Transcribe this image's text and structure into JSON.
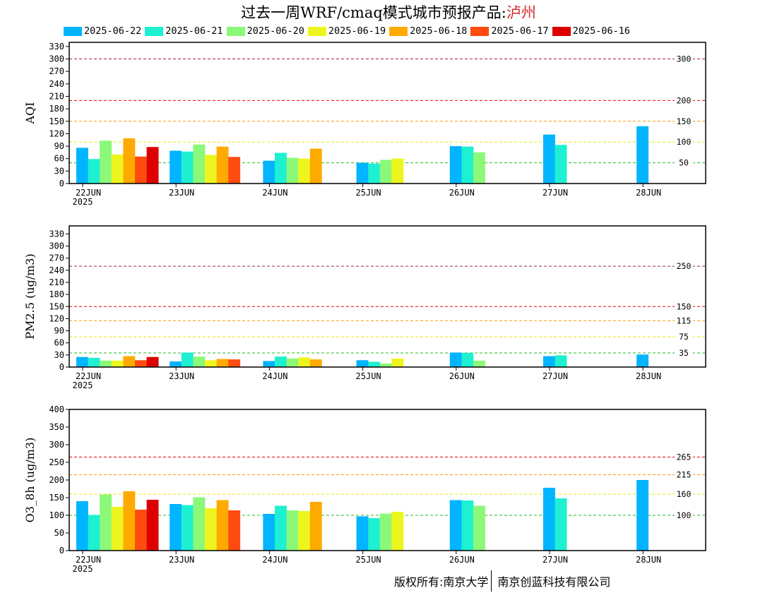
{
  "title": {
    "prefix": "过去一周WRF/cmaq模式城市预报产品:",
    "city": "泸州"
  },
  "footer": {
    "left": "版权所有:南京大学",
    "right": "南京创蓝科技有限公司"
  },
  "colors": {
    "2025-06-22": "#00b4ff",
    "2025-06-21": "#1ef0d2",
    "2025-06-20": "#8cf878",
    "2025-06-19": "#eef51e",
    "2025-06-18": "#ffaa00",
    "2025-06-17": "#ff4b0f",
    "2025-06-16": "#dc0000"
  },
  "chart_data": [
    {
      "type": "bar",
      "ylabel": "AQI",
      "ylim": [
        0,
        340
      ],
      "yticks": [
        0,
        30,
        60,
        90,
        120,
        150,
        180,
        210,
        240,
        270,
        300,
        330
      ],
      "xticks": [
        "22JUN",
        "23JUN",
        "24JUN",
        "25JUN",
        "26JUN",
        "27JUN",
        "28JUN"
      ],
      "year_label": "2025",
      "legend": [
        "2025-06-22",
        "2025-06-21",
        "2025-06-20",
        "2025-06-19",
        "2025-06-18",
        "2025-06-17",
        "2025-06-16"
      ],
      "series": [
        {
          "name": "2025-06-22",
          "values": [
            86,
            79,
            55,
            50,
            90,
            118,
            138
          ]
        },
        {
          "name": "2025-06-21",
          "values": [
            59,
            77,
            74,
            48,
            89,
            93,
            null
          ]
        },
        {
          "name": "2025-06-20",
          "values": [
            103,
            94,
            62,
            57,
            75,
            null,
            null
          ]
        },
        {
          "name": "2025-06-19",
          "values": [
            70,
            69,
            60,
            60,
            null,
            null,
            null
          ]
        },
        {
          "name": "2025-06-18",
          "values": [
            109,
            89,
            84,
            null,
            null,
            null,
            null
          ]
        },
        {
          "name": "2025-06-17",
          "values": [
            65,
            64,
            null,
            null,
            null,
            null,
            null
          ]
        },
        {
          "name": "2025-06-16",
          "values": [
            88,
            null,
            null,
            null,
            null,
            null,
            null
          ]
        }
      ],
      "thresholds": [
        {
          "value": 50,
          "label": "50",
          "color": "#22bb22"
        },
        {
          "value": 100,
          "label": "100",
          "color": "#e8e800"
        },
        {
          "value": 150,
          "label": "150",
          "color": "#ff9900"
        },
        {
          "value": 200,
          "label": "200",
          "color": "#ee0000"
        },
        {
          "value": 300,
          "label": "300",
          "color": "#a0205a"
        }
      ]
    },
    {
      "type": "bar",
      "ylabel": "PM2.5 (ug/m3)",
      "ylim": [
        0,
        350
      ],
      "yticks": [
        0,
        30,
        60,
        90,
        120,
        150,
        180,
        210,
        240,
        270,
        300,
        330
      ],
      "xticks": [
        "22JUN",
        "23JUN",
        "24JUN",
        "25JUN",
        "26JUN",
        "27JUN",
        "28JUN"
      ],
      "year_label": "2025",
      "series": [
        {
          "name": "2025-06-22",
          "values": [
            25,
            14,
            15,
            17,
            36,
            27,
            31
          ]
        },
        {
          "name": "2025-06-21",
          "values": [
            23,
            36,
            26,
            13,
            35,
            29,
            null
          ]
        },
        {
          "name": "2025-06-20",
          "values": [
            16,
            26,
            21,
            9,
            16,
            null,
            null
          ]
        },
        {
          "name": "2025-06-19",
          "values": [
            16,
            17,
            24,
            21,
            null,
            null,
            null
          ]
        },
        {
          "name": "2025-06-18",
          "values": [
            27,
            20,
            19,
            null,
            null,
            null,
            null
          ]
        },
        {
          "name": "2025-06-17",
          "values": [
            17,
            19,
            null,
            null,
            null,
            null,
            null
          ]
        },
        {
          "name": "2025-06-16",
          "values": [
            25,
            null,
            null,
            null,
            null,
            null,
            null
          ]
        }
      ],
      "thresholds": [
        {
          "value": 35,
          "label": "35",
          "color": "#22bb22"
        },
        {
          "value": 75,
          "label": "75",
          "color": "#e8e800"
        },
        {
          "value": 115,
          "label": "115",
          "color": "#ff9900"
        },
        {
          "value": 150,
          "label": "150",
          "color": "#ee0000"
        },
        {
          "value": 250,
          "label": "250",
          "color": "#a0205a"
        }
      ]
    },
    {
      "type": "bar",
      "ylabel": "O3_8h (ug/m3)",
      "ylim": [
        0,
        400
      ],
      "yticks": [
        0,
        50,
        100,
        150,
        200,
        250,
        300,
        350,
        400
      ],
      "xticks": [
        "22JUN",
        "23JUN",
        "24JUN",
        "25JUN",
        "26JUN",
        "27JUN",
        "28JUN"
      ],
      "year_label": "2025",
      "series": [
        {
          "name": "2025-06-22",
          "values": [
            140,
            132,
            104,
            97,
            143,
            178,
            200
          ]
        },
        {
          "name": "2025-06-21",
          "values": [
            101,
            129,
            127,
            92,
            142,
            148,
            null
          ]
        },
        {
          "name": "2025-06-20",
          "values": [
            159,
            151,
            114,
            105,
            127,
            null,
            null
          ]
        },
        {
          "name": "2025-06-19",
          "values": [
            124,
            120,
            112,
            110,
            null,
            null,
            null
          ]
        },
        {
          "name": "2025-06-18",
          "values": [
            168,
            143,
            138,
            null,
            null,
            null,
            null
          ]
        },
        {
          "name": "2025-06-17",
          "values": [
            116,
            114,
            null,
            null,
            null,
            null,
            null
          ]
        },
        {
          "name": "2025-06-16",
          "values": [
            144,
            null,
            null,
            null,
            null,
            null,
            null
          ]
        }
      ],
      "thresholds": [
        {
          "value": 100,
          "label": "100",
          "color": "#22bb22"
        },
        {
          "value": 160,
          "label": "160",
          "color": "#e8e800"
        },
        {
          "value": 215,
          "label": "215",
          "color": "#ff9900"
        },
        {
          "value": 265,
          "label": "265",
          "color": "#ee0000"
        }
      ]
    }
  ]
}
